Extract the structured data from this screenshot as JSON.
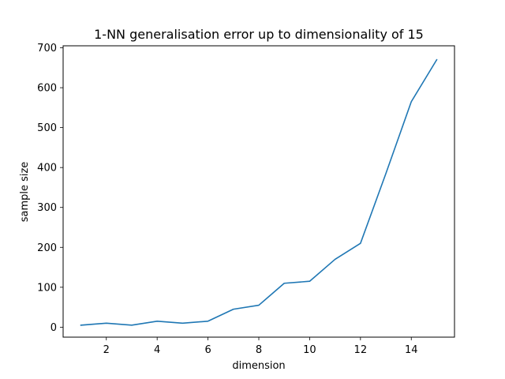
{
  "chart_data": {
    "type": "line",
    "title": "1-NN generalisation error up to dimensionality of 15",
    "xlabel": "dimension",
    "ylabel": "sample size",
    "xlim": [
      0.3,
      15.7
    ],
    "ylim": [
      -25,
      705
    ],
    "xticks": [
      2,
      4,
      6,
      8,
      10,
      12,
      14
    ],
    "yticks": [
      0,
      100,
      200,
      300,
      400,
      500,
      600,
      700
    ],
    "grid": false,
    "legend": "none",
    "series": [
      {
        "color": "#1f77b4",
        "x": [
          1,
          2,
          3,
          4,
          5,
          6,
          7,
          8,
          9,
          10,
          11,
          12,
          13,
          14,
          15
        ],
        "y": [
          5,
          10,
          5,
          15,
          10,
          15,
          45,
          55,
          110,
          115,
          170,
          210,
          385,
          565,
          670
        ]
      }
    ]
  }
}
